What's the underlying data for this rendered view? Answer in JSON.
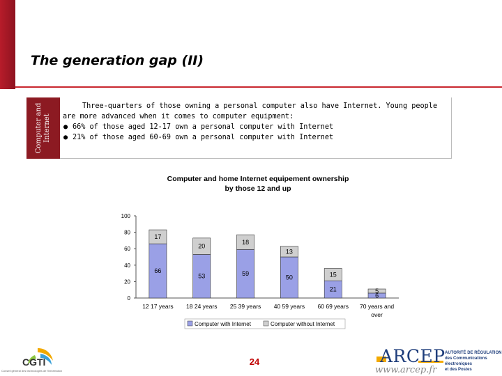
{
  "title": "The generation gap (II)",
  "side_tab": {
    "line1": "Computer and",
    "line2": "Internet"
  },
  "body": {
    "intro": "Three-quarters of those owning a personal computer also have Internet. Young people are more advanced when it comes to computer equipment:",
    "bullets": [
      "66% of those aged 12-17 own a personal computer with Internet",
      "21% of those aged 60-69 own a personal computer with Internet"
    ]
  },
  "page_number": "24",
  "footer": {
    "left_logo_text": "CGTI",
    "left_logo_subtext": "Conseil général des technologies de l'information",
    "right_logo_text": "ARCEP",
    "right_logo_url": "www.arcep.fr",
    "right_logo_side": [
      "AUTORITÉ DE RÉGULATION",
      "des Communications électroniques",
      "et des Postes"
    ]
  },
  "colors": {
    "accent_red": "#b71c2a",
    "with_internet": "#9aa0e6",
    "without_internet": "#cfcfcf",
    "page_number": "#c00000"
  },
  "chart_data": {
    "type": "bar",
    "stacked": true,
    "title_lines": [
      "Computer and home Internet equipement ownership",
      "by those 12 and up"
    ],
    "categories": [
      "12 17 years",
      "18 24 years",
      "25 39 years",
      "40 59 years",
      "60 69 years",
      "70 years and over"
    ],
    "series": [
      {
        "name": "Computer with Internet",
        "values": [
          66,
          53,
          59,
          50,
          21,
          6
        ]
      },
      {
        "name": "Computer without Internet",
        "values": [
          17,
          20,
          18,
          13,
          15,
          5
        ]
      }
    ],
    "y_ticks": [
      "100",
      "80",
      "60",
      "40",
      "20",
      "0"
    ],
    "ylim": [
      0,
      100
    ],
    "legend_position": "bottom"
  }
}
